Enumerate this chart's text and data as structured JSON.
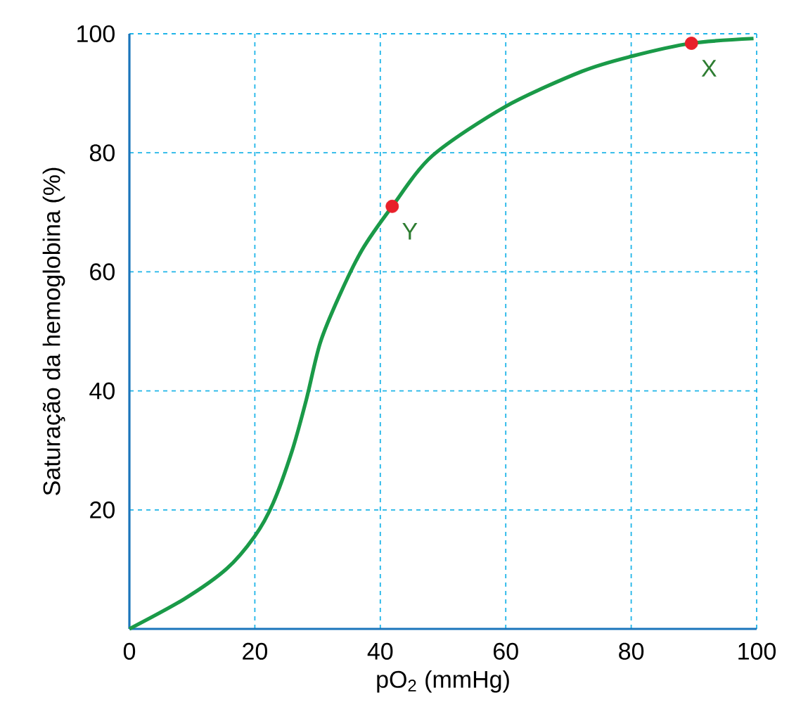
{
  "chart_data": {
    "type": "line",
    "xlabel": "pO$_{2}$ (mmHg)",
    "ylabel": "Saturação da hemoglobina (%)",
    "xlim": [
      0,
      100
    ],
    "ylim": [
      0,
      100
    ],
    "xticks": [
      0,
      20,
      40,
      60,
      80,
      100
    ],
    "yticks": [
      {
        "value": 0,
        "label": null
      },
      20,
      40,
      60,
      80,
      100
    ],
    "grid": true,
    "series": [
      {
        "color": "#1a9a48",
        "marker": "none",
        "x": [
          0,
          8.7,
          15.5,
          20,
          22.9,
          25.9,
          28.2,
          30.4,
          33.4,
          37.1,
          41.9,
          48.3,
          60,
          72.2,
          80,
          89.6,
          99.5
        ],
        "values": [
          0,
          5.0,
          10.1,
          15.6,
          21.1,
          29.8,
          38.5,
          48,
          55.8,
          63.7,
          71,
          79.5,
          87.8,
          93.7,
          96.2,
          98.4,
          99.2
        ]
      },
      {
        "type": "scatter",
        "color": "#e8202a",
        "marker": "circle",
        "x": [
          41.9,
          89.6
        ],
        "values": [
          71,
          98.4
        ]
      }
    ],
    "annotations": [
      {
        "text": "Y",
        "x": 41.9,
        "y": 71
      },
      {
        "text": "X",
        "x": 89.6,
        "y": 98.4
      }
    ]
  }
}
